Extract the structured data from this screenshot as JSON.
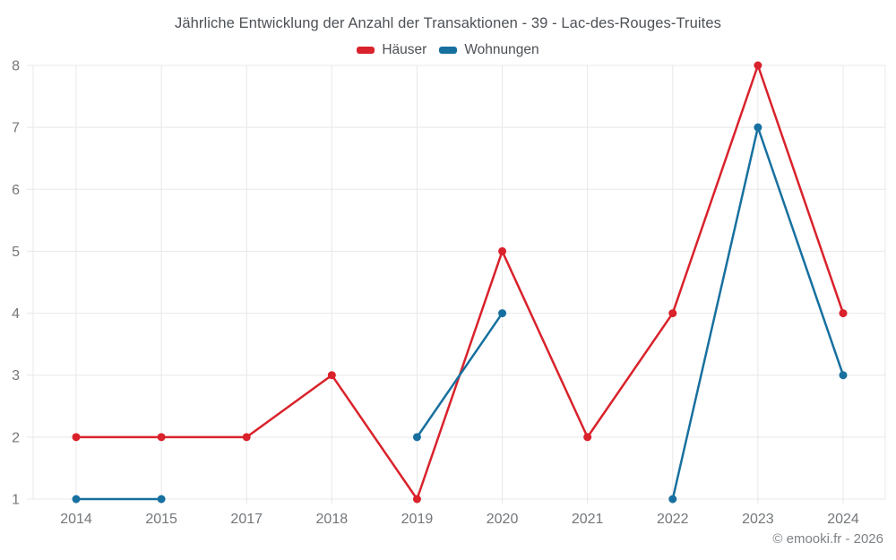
{
  "chart": {
    "title": "Jährliche Entwicklung der Anzahl der Transaktionen - 39 - Lac-des-Rouges-Truites",
    "legend": [
      {
        "label": "Häuser",
        "color": "#d9222b"
      },
      {
        "label": "Wohnungen",
        "color": "#17709f"
      }
    ]
  },
  "chart_data": {
    "type": "line",
    "title": "Jährliche Entwicklung der Anzahl der Transaktionen - 39 - Lac-des-Rouges-Truites",
    "categories": [
      "2014",
      "2015",
      "2017",
      "2018",
      "2019",
      "2020",
      "2021",
      "2022",
      "2023",
      "2024"
    ],
    "series": [
      {
        "name": "Häuser",
        "color": "#d9222b",
        "values": [
          2,
          2,
          2,
          3,
          1,
          5,
          2,
          4,
          8,
          4
        ]
      },
      {
        "name": "Wohnungen",
        "color": "#17709f",
        "values": [
          1,
          1,
          null,
          null,
          2,
          4,
          null,
          1,
          7,
          3
        ]
      }
    ],
    "xlabel": "",
    "ylabel": "",
    "ylim": [
      1,
      8
    ],
    "yticks": [
      1,
      2,
      3,
      4,
      5,
      6,
      7,
      8
    ],
    "grid": true,
    "legend_position": "top"
  },
  "footer": {
    "copyright": "© emooki.fr - 2026"
  },
  "theme": {
    "title_color": "#4d5156",
    "axis_label_color": "#73777a",
    "grid_color": "#e8e8e8",
    "copyright_color": "#7d8286",
    "series_red": "#d9222b",
    "series_blue": "#17709f"
  }
}
